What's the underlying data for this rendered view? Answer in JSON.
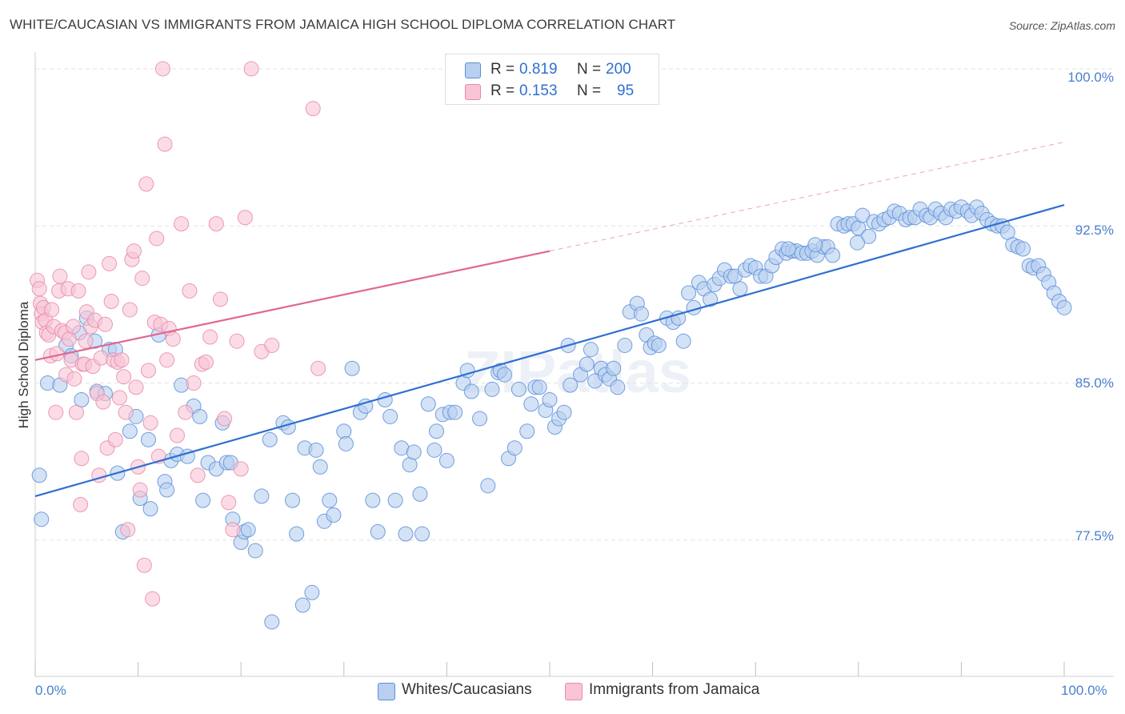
{
  "title": "WHITE/CAUCASIAN VS IMMIGRANTS FROM JAMAICA HIGH SCHOOL DIPLOMA CORRELATION CHART",
  "source": "Source: ZipAtlas.com",
  "watermark": "ZIPatlas",
  "legend": {
    "row1": {
      "r_label": "R =",
      "r_value": "0.819",
      "n_label": "N =",
      "n_value": "200"
    },
    "row2": {
      "r_label": "R =",
      "r_value": "0.153",
      "n_label": "N =",
      "n_value": "95"
    }
  },
  "bottom_legend": {
    "series1": "Whites/Caucasians",
    "series2": "Immigrants from Jamaica"
  },
  "colors": {
    "blue_fill": "#b8cff0",
    "blue_stroke": "#5a8fd8",
    "blue_line": "#2f6fd1",
    "pink_fill": "#f9c4d6",
    "pink_stroke": "#e88aa8",
    "pink_line": "#e06890"
  },
  "chart_data": {
    "type": "scatter",
    "title": "WHITE/CAUCASIAN VS IMMIGRANTS FROM JAMAICA HIGH SCHOOL DIPLOMA CORRELATION CHART",
    "xlabel": "",
    "ylabel": "High School Diploma",
    "xlim": [
      0,
      100
    ],
    "ylim": [
      71.0,
      100.8
    ],
    "x_tick_labels": [
      "0.0%",
      "100.0%"
    ],
    "y_ticks": [
      77.5,
      85.0,
      92.5,
      100.0
    ],
    "y_tick_labels": [
      "77.5%",
      "85.0%",
      "92.5%",
      "100.0%"
    ],
    "grid": true,
    "legend_position": "top-center",
    "series": [
      {
        "name": "Whites/Caucasians",
        "R": 0.819,
        "N": 200,
        "trend": {
          "x": [
            0,
            100
          ],
          "y": [
            79.6,
            93.5
          ]
        },
        "points": [
          [
            0.4,
            80.6
          ],
          [
            0.6,
            78.5
          ],
          [
            1.2,
            85.0
          ],
          [
            2.4,
            84.9
          ],
          [
            3.0,
            86.8
          ],
          [
            3.5,
            86.3
          ],
          [
            4.3,
            87.4
          ],
          [
            4.5,
            84.2
          ],
          [
            5.0,
            88.1
          ],
          [
            5.8,
            87.0
          ],
          [
            6.0,
            84.6
          ],
          [
            6.8,
            84.5
          ],
          [
            7.2,
            86.6
          ],
          [
            7.8,
            86.6
          ],
          [
            8.0,
            80.7
          ],
          [
            8.5,
            77.9
          ],
          [
            9.2,
            82.7
          ],
          [
            9.8,
            83.4
          ],
          [
            10.2,
            79.5
          ],
          [
            11.0,
            82.3
          ],
          [
            11.2,
            79.0
          ],
          [
            12.0,
            87.3
          ],
          [
            12.6,
            80.3
          ],
          [
            12.8,
            79.9
          ],
          [
            13.2,
            81.3
          ],
          [
            13.8,
            81.6
          ],
          [
            14.2,
            84.9
          ],
          [
            14.8,
            81.5
          ],
          [
            15.4,
            83.9
          ],
          [
            16.0,
            83.4
          ],
          [
            16.3,
            79.4
          ],
          [
            16.8,
            81.2
          ],
          [
            17.6,
            80.9
          ],
          [
            18.2,
            83.1
          ],
          [
            18.6,
            81.2
          ],
          [
            19.0,
            81.2
          ],
          [
            19.2,
            78.5
          ],
          [
            20.0,
            77.4
          ],
          [
            20.3,
            77.9
          ],
          [
            20.7,
            78.0
          ],
          [
            21.4,
            77.0
          ],
          [
            22.0,
            79.6
          ],
          [
            22.8,
            82.3
          ],
          [
            23.0,
            73.6
          ],
          [
            24.1,
            83.1
          ],
          [
            24.6,
            82.9
          ],
          [
            25.0,
            79.4
          ],
          [
            25.4,
            77.8
          ],
          [
            26.0,
            74.4
          ],
          [
            26.2,
            81.9
          ],
          [
            26.9,
            75.0
          ],
          [
            27.3,
            81.8
          ],
          [
            27.7,
            81.0
          ],
          [
            28.1,
            78.4
          ],
          [
            28.6,
            79.4
          ],
          [
            29.0,
            78.7
          ],
          [
            30.0,
            82.7
          ],
          [
            30.2,
            82.1
          ],
          [
            30.8,
            85.7
          ],
          [
            31.6,
            83.6
          ],
          [
            32.1,
            83.9
          ],
          [
            32.8,
            79.4
          ],
          [
            33.3,
            77.9
          ],
          [
            34.0,
            84.2
          ],
          [
            34.5,
            83.4
          ],
          [
            35.0,
            79.4
          ],
          [
            35.6,
            81.9
          ],
          [
            36.0,
            77.8
          ],
          [
            36.4,
            81.1
          ],
          [
            36.8,
            81.7
          ],
          [
            37.4,
            79.7
          ],
          [
            37.6,
            77.8
          ],
          [
            38.2,
            84.0
          ],
          [
            38.8,
            81.8
          ],
          [
            39.0,
            82.7
          ],
          [
            39.6,
            83.5
          ],
          [
            40.0,
            81.3
          ],
          [
            40.3,
            83.6
          ],
          [
            40.8,
            83.6
          ],
          [
            41.6,
            85.0
          ],
          [
            42.0,
            85.6
          ],
          [
            42.4,
            84.6
          ],
          [
            43.2,
            83.3
          ],
          [
            44.0,
            80.1
          ],
          [
            44.4,
            84.7
          ],
          [
            45.0,
            85.5
          ],
          [
            45.2,
            85.6
          ],
          [
            45.6,
            85.4
          ],
          [
            46.0,
            81.4
          ],
          [
            46.6,
            81.9
          ],
          [
            47.0,
            84.7
          ],
          [
            47.8,
            82.7
          ],
          [
            48.2,
            84.0
          ],
          [
            48.6,
            84.8
          ],
          [
            49.0,
            84.8
          ],
          [
            49.6,
            83.7
          ],
          [
            50.0,
            84.2
          ],
          [
            50.5,
            82.9
          ],
          [
            50.9,
            83.3
          ],
          [
            51.4,
            83.6
          ],
          [
            51.8,
            86.8
          ],
          [
            52.0,
            84.9
          ],
          [
            53.0,
            85.4
          ],
          [
            53.6,
            85.9
          ],
          [
            54.0,
            86.6
          ],
          [
            54.4,
            85.1
          ],
          [
            55.0,
            85.7
          ],
          [
            55.4,
            85.4
          ],
          [
            55.8,
            85.2
          ],
          [
            56.2,
            85.7
          ],
          [
            56.6,
            84.8
          ],
          [
            57.3,
            86.8
          ],
          [
            57.8,
            88.4
          ],
          [
            58.5,
            88.8
          ],
          [
            58.9,
            88.3
          ],
          [
            59.4,
            87.3
          ],
          [
            59.8,
            86.7
          ],
          [
            60.2,
            86.9
          ],
          [
            60.6,
            86.8
          ],
          [
            61.4,
            88.1
          ],
          [
            62.0,
            87.9
          ],
          [
            62.5,
            88.1
          ],
          [
            63.0,
            87.0
          ],
          [
            63.5,
            89.3
          ],
          [
            64.0,
            88.6
          ],
          [
            64.5,
            89.8
          ],
          [
            65.0,
            89.5
          ],
          [
            65.6,
            89.0
          ],
          [
            66.0,
            89.7
          ],
          [
            66.5,
            90.0
          ],
          [
            67.0,
            90.4
          ],
          [
            67.6,
            90.1
          ],
          [
            68.0,
            90.1
          ],
          [
            68.5,
            89.5
          ],
          [
            69.0,
            90.4
          ],
          [
            69.5,
            90.6
          ],
          [
            70.0,
            90.5
          ],
          [
            70.5,
            90.1
          ],
          [
            71.0,
            90.1
          ],
          [
            71.6,
            90.6
          ],
          [
            72.0,
            91.0
          ],
          [
            72.6,
            91.4
          ],
          [
            73.0,
            91.2
          ],
          [
            73.6,
            91.3
          ],
          [
            74.0,
            91.3
          ],
          [
            74.5,
            91.2
          ],
          [
            75.0,
            91.2
          ],
          [
            75.5,
            91.3
          ],
          [
            76.0,
            91.1
          ],
          [
            76.6,
            91.5
          ],
          [
            77.0,
            91.5
          ],
          [
            77.5,
            91.1
          ],
          [
            78.0,
            92.6
          ],
          [
            78.6,
            92.5
          ],
          [
            79.0,
            92.6
          ],
          [
            79.5,
            92.6
          ],
          [
            80.0,
            92.4
          ],
          [
            80.4,
            93.0
          ],
          [
            81.0,
            92.0
          ],
          [
            81.5,
            92.7
          ],
          [
            82.0,
            92.6
          ],
          [
            82.5,
            92.8
          ],
          [
            83.0,
            92.9
          ],
          [
            83.5,
            93.2
          ],
          [
            84.0,
            93.1
          ],
          [
            84.6,
            92.8
          ],
          [
            85.0,
            92.9
          ],
          [
            85.5,
            92.9
          ],
          [
            86.0,
            93.3
          ],
          [
            86.6,
            93.0
          ],
          [
            87.0,
            92.9
          ],
          [
            87.5,
            93.3
          ],
          [
            88.0,
            93.1
          ],
          [
            88.5,
            92.9
          ],
          [
            89.0,
            93.3
          ],
          [
            89.5,
            93.2
          ],
          [
            90.0,
            93.4
          ],
          [
            90.6,
            93.2
          ],
          [
            91.0,
            93.0
          ],
          [
            91.5,
            93.4
          ],
          [
            92.0,
            93.1
          ],
          [
            92.5,
            92.8
          ],
          [
            93.0,
            92.6
          ],
          [
            93.5,
            92.5
          ],
          [
            94.0,
            92.5
          ],
          [
            94.5,
            92.2
          ],
          [
            95.0,
            91.6
          ],
          [
            95.5,
            91.5
          ],
          [
            96.0,
            91.4
          ],
          [
            96.6,
            90.6
          ],
          [
            97.0,
            90.5
          ],
          [
            97.5,
            90.6
          ],
          [
            98.0,
            90.2
          ],
          [
            98.5,
            89.8
          ],
          [
            99.0,
            89.3
          ],
          [
            99.5,
            88.9
          ],
          [
            100.0,
            88.6
          ],
          [
            73.2,
            91.4
          ],
          [
            75.8,
            91.6
          ],
          [
            79.9,
            91.7
          ]
        ]
      },
      {
        "name": "Immigrants from Jamaica",
        "R": 0.153,
        "N": 95,
        "trend": {
          "x": [
            0,
            50
          ],
          "y": [
            86.1,
            91.3
          ]
        },
        "trend_extension": {
          "x": [
            50,
            100
          ],
          "y": [
            91.3,
            96.5
          ]
        },
        "points": [
          [
            0.2,
            89.9
          ],
          [
            0.4,
            89.5
          ],
          [
            0.5,
            88.8
          ],
          [
            0.6,
            88.3
          ],
          [
            0.7,
            87.9
          ],
          [
            0.8,
            88.6
          ],
          [
            1.0,
            88.0
          ],
          [
            1.1,
            87.4
          ],
          [
            1.3,
            87.3
          ],
          [
            1.5,
            86.3
          ],
          [
            1.6,
            88.5
          ],
          [
            1.8,
            87.7
          ],
          [
            2.0,
            83.6
          ],
          [
            2.1,
            86.4
          ],
          [
            2.3,
            89.4
          ],
          [
            2.4,
            90.1
          ],
          [
            2.6,
            87.5
          ],
          [
            2.9,
            87.4
          ],
          [
            3.0,
            85.4
          ],
          [
            3.2,
            89.5
          ],
          [
            3.3,
            87.1
          ],
          [
            3.5,
            86.1
          ],
          [
            3.7,
            87.7
          ],
          [
            3.8,
            85.2
          ],
          [
            4.0,
            83.6
          ],
          [
            4.2,
            89.4
          ],
          [
            4.4,
            79.2
          ],
          [
            4.5,
            81.4
          ],
          [
            4.6,
            85.9
          ],
          [
            4.8,
            85.9
          ],
          [
            4.9,
            87.0
          ],
          [
            5.0,
            88.4
          ],
          [
            5.2,
            90.3
          ],
          [
            5.4,
            87.7
          ],
          [
            5.6,
            85.8
          ],
          [
            5.8,
            88.0
          ],
          [
            6.0,
            84.5
          ],
          [
            6.2,
            80.6
          ],
          [
            6.4,
            86.2
          ],
          [
            6.6,
            84.1
          ],
          [
            6.8,
            87.8
          ],
          [
            7.0,
            81.9
          ],
          [
            7.2,
            90.7
          ],
          [
            7.4,
            88.9
          ],
          [
            7.6,
            86.1
          ],
          [
            7.8,
            82.3
          ],
          [
            8.0,
            86.0
          ],
          [
            8.2,
            84.3
          ],
          [
            8.4,
            86.1
          ],
          [
            8.6,
            85.3
          ],
          [
            8.8,
            83.6
          ],
          [
            9.0,
            78.0
          ],
          [
            9.2,
            88.5
          ],
          [
            9.4,
            90.9
          ],
          [
            9.6,
            91.3
          ],
          [
            9.8,
            84.8
          ],
          [
            10.0,
            81.0
          ],
          [
            10.2,
            79.9
          ],
          [
            10.4,
            90.0
          ],
          [
            10.6,
            76.3
          ],
          [
            10.8,
            94.5
          ],
          [
            11.0,
            85.6
          ],
          [
            11.2,
            83.1
          ],
          [
            11.4,
            74.7
          ],
          [
            11.6,
            87.9
          ],
          [
            11.8,
            91.9
          ],
          [
            12.0,
            81.5
          ],
          [
            12.2,
            87.8
          ],
          [
            12.4,
            100.0
          ],
          [
            12.6,
            96.4
          ],
          [
            12.8,
            86.1
          ],
          [
            13.0,
            87.6
          ],
          [
            13.4,
            87.1
          ],
          [
            13.8,
            82.5
          ],
          [
            14.2,
            92.6
          ],
          [
            14.6,
            83.6
          ],
          [
            15.0,
            89.4
          ],
          [
            15.4,
            85.0
          ],
          [
            15.8,
            80.6
          ],
          [
            16.2,
            85.9
          ],
          [
            16.6,
            86.0
          ],
          [
            17.0,
            87.2
          ],
          [
            17.6,
            92.6
          ],
          [
            18.0,
            89.0
          ],
          [
            18.4,
            83.3
          ],
          [
            18.8,
            79.3
          ],
          [
            19.2,
            78.0
          ],
          [
            19.6,
            87.0
          ],
          [
            20.0,
            80.9
          ],
          [
            20.4,
            92.9
          ],
          [
            21.0,
            100.0
          ],
          [
            22.0,
            86.5
          ],
          [
            23.0,
            86.8
          ],
          [
            27.0,
            98.1
          ],
          [
            27.5,
            85.7
          ]
        ]
      }
    ]
  }
}
